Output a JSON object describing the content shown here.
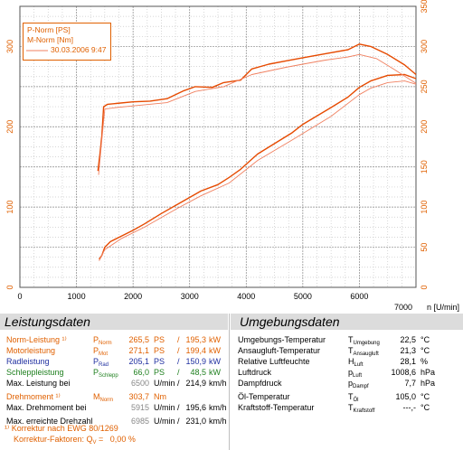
{
  "chart_data": {
    "type": "line",
    "xlabel": "n [U/min]",
    "xlim": [
      0,
      7000
    ],
    "ylim_left": [
      0,
      350
    ],
    "ylim_right": [
      0,
      350
    ],
    "x_ticks": [
      "0",
      "1000",
      "2000",
      "3000",
      "4000",
      "5000",
      "6000",
      "7000"
    ],
    "y_ticks_left": [
      "0",
      "100",
      "200",
      "300"
    ],
    "y_ticks_right": [
      "0",
      "50",
      "100",
      "150",
      "200",
      "250",
      "300",
      "350"
    ],
    "legend": [
      "P-Norm [PS]",
      "M-Norm [Nm]",
      "30.03.2006 9:47"
    ],
    "series": [
      {
        "name": "P-Norm [PS]",
        "color": "#e64a00",
        "x": [
          1400,
          1450,
          1500,
          1600,
          1800,
          2000,
          2200,
          2500,
          2800,
          3000,
          3200,
          3500,
          3700,
          3900,
          4200,
          4500,
          4800,
          5000,
          5500,
          5800,
          6000,
          6200,
          6500,
          6800,
          7000
        ],
        "y": [
          35,
          40,
          50,
          57,
          64,
          71,
          79,
          92,
          104,
          112,
          120,
          128,
          137,
          147,
          166,
          179,
          192,
          203,
          224,
          237,
          249,
          257,
          264,
          265,
          260
        ]
      },
      {
        "name": "M-Norm [Nm]",
        "color": "#e64a00",
        "x": [
          1380,
          1420,
          1450,
          1480,
          1550,
          1700,
          2000,
          2300,
          2600,
          2900,
          3100,
          3400,
          3600,
          3900,
          4100,
          4400,
          4700,
          5000,
          5400,
          5800,
          6000,
          6200,
          6500,
          6800,
          7000
        ],
        "y": [
          145,
          170,
          190,
          225,
          228,
          229,
          231,
          232,
          235,
          245,
          250,
          249,
          255,
          258,
          272,
          278,
          282,
          286,
          291,
          296,
          303,
          300,
          290,
          277,
          265
        ]
      },
      {
        "color": "#f08060",
        "x": [
          1400,
          1500,
          1800,
          2200,
          2800,
          3200,
          3700,
          4200,
          4800,
          5500,
          6000,
          6200,
          6500,
          6800,
          7000
        ],
        "y": [
          33,
          47,
          61,
          75,
          99,
          114,
          130,
          158,
          183,
          213,
          240,
          248,
          255,
          257,
          253
        ]
      },
      {
        "color": "#f08060",
        "x": [
          1390,
          1450,
          1500,
          1700,
          2000,
          2600,
          3100,
          3600,
          4100,
          4700,
          5000,
          5400,
          5800,
          6000,
          6300,
          6600,
          7000
        ],
        "y": [
          140,
          185,
          222,
          224,
          226,
          230,
          244,
          250,
          265,
          274,
          278,
          283,
          287,
          290,
          285,
          272,
          254
        ]
      }
    ]
  },
  "leistung": {
    "title": "Leistungsdaten",
    "rows": [
      {
        "label": "Norm-Leistung ¹⁾",
        "sym": "P",
        "sub": "Norm",
        "v1": "265,5",
        "u1": "PS",
        "sep": "/",
        "v2": "195,3",
        "u2": "kW",
        "color": "#e06000"
      },
      {
        "label": "Motorleistung",
        "sym": "P",
        "sub": "Mot",
        "v1": "271,1",
        "u1": "PS",
        "sep": "/",
        "v2": "199,4",
        "u2": "kW",
        "color": "#e06000"
      },
      {
        "label": "Radleistung",
        "sym": "P",
        "sub": "Rad",
        "v1": "205,1",
        "u1": "PS",
        "sep": "/",
        "v2": "150,9",
        "u2": "kW",
        "color": "#2030a0"
      },
      {
        "label": "Schleppleistung",
        "sym": "P",
        "sub": "Schlepp",
        "v1": "66,0",
        "u1": "PS",
        "sep": "/",
        "v2": "48,5",
        "u2": "kW",
        "color": "#208020"
      },
      {
        "label": "Max. Leistung bei",
        "sym": "",
        "sub": "",
        "v1": "6500",
        "u1": "U/min",
        "sep": "/",
        "v2": "214,9",
        "u2": "km/h",
        "color": "#000000",
        "v1color": "#888888"
      },
      {
        "label": "Drehmoment ¹⁾",
        "sym": "M",
        "sub": "Norm",
        "v1": "303,7",
        "u1": "Nm",
        "sep": "",
        "v2": "",
        "u2": "",
        "color": "#e06000"
      },
      {
        "label": "Max. Drehmoment bei",
        "sym": "",
        "sub": "",
        "v1": "5915",
        "u1": "U/min",
        "sep": "/",
        "v2": "195,6",
        "u2": "km/h",
        "color": "#000000",
        "v1color": "#888888"
      },
      {
        "label": "Max. erreichte Drehzahl",
        "sym": "",
        "sub": "",
        "v1": "6985",
        "u1": "U/min",
        "sep": "/",
        "v2": "231,0",
        "u2": "km/h",
        "color": "#000000",
        "v1color": "#888888"
      }
    ],
    "footnote1": "¹⁾ Korrektur nach EWG 80/1269",
    "footnote2": "Korrektur-Faktoren: Q",
    "footnote2_sub": "V",
    "footnote2_val": " =   0,00 %"
  },
  "umgebung": {
    "title": "Umgebungsdaten",
    "rows": [
      {
        "label": "Umgebungs-Temperatur",
        "sym": "T",
        "sub": "Umgebung",
        "val": "22,5",
        "unit": "°C"
      },
      {
        "label": "Ansaugluft-Temperatur",
        "sym": "T",
        "sub": "Ansaugluft",
        "val": "21,3",
        "unit": "°C"
      },
      {
        "label": "Relative Luftfeuchte",
        "sym": "H",
        "sub": "Luft",
        "val": "28,1",
        "unit": "%"
      },
      {
        "label": "Luftdruck",
        "sym": "p",
        "sub": "Luft",
        "val": "1008,6",
        "unit": "hPa"
      },
      {
        "label": "Dampfdruck",
        "sym": "p",
        "sub": "Dampf",
        "val": "7,7",
        "unit": "hPa"
      },
      {
        "label": "Öl-Temperatur",
        "sym": "T",
        "sub": "Öl",
        "val": "105,0",
        "unit": "°C"
      },
      {
        "label": "Kraftstoff-Temperatur",
        "sym": "T",
        "sub": "Kraftstoff",
        "val": "---,-",
        "unit": "°C"
      }
    ]
  }
}
